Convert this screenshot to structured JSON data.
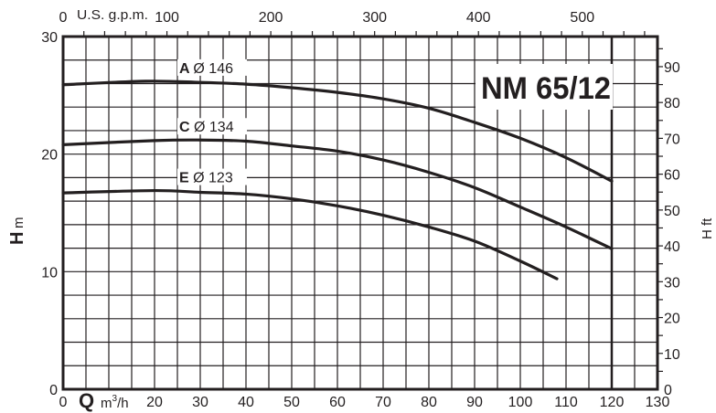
{
  "chart_data": {
    "type": "line",
    "title": "NM 65/12",
    "xlabel": "Q",
    "xunit": "m³/h",
    "ylabel": "H",
    "yunit": "m",
    "y2label": "H ft",
    "x2label": "U.S. g.p.m.",
    "xlim": [
      0,
      130
    ],
    "ylim": [
      0,
      30
    ],
    "y2lim": [
      0,
      98.4
    ],
    "x2lim": [
      0,
      572.4
    ],
    "grid": true,
    "x_ticks": [
      "0",
      "20",
      "30",
      "40",
      "50",
      "60",
      "70",
      "80",
      "90",
      "100",
      "110",
      "120",
      "130"
    ],
    "x_tick_values": [
      0,
      20,
      30,
      40,
      50,
      60,
      70,
      80,
      90,
      100,
      110,
      120,
      130
    ],
    "y_ticks": [
      "0",
      "10",
      "20",
      "30"
    ],
    "y_tick_values": [
      0,
      10,
      20,
      30
    ],
    "y2_ticks": [
      "0",
      "10",
      "20",
      "30",
      "40",
      "50",
      "60",
      "70",
      "80",
      "90"
    ],
    "y2_tick_values": [
      0,
      10,
      20,
      30,
      40,
      50,
      60,
      70,
      80,
      90
    ],
    "x2_ticks": [
      "0",
      "100",
      "200",
      "300",
      "400",
      "500"
    ],
    "x2_tick_values": [
      0,
      100,
      200,
      300,
      400,
      500
    ],
    "max_flow_marker": 120,
    "series": [
      {
        "name": "A Ø 146",
        "letter": "A",
        "diameter": "Ø 146",
        "x": [
          0,
          18,
          30,
          40,
          50,
          60,
          70,
          80,
          90,
          100,
          110,
          120
        ],
        "y": [
          25.9,
          26.2,
          26.1,
          25.95,
          25.65,
          25.25,
          24.7,
          23.9,
          22.7,
          21.35,
          19.7,
          17.7
        ]
      },
      {
        "name": "C Ø 134",
        "letter": "C",
        "diameter": "Ø 134",
        "x": [
          0,
          20,
          30,
          40,
          50,
          60,
          70,
          80,
          90,
          100,
          110,
          120
        ],
        "y": [
          20.8,
          21.15,
          21.2,
          21.1,
          20.7,
          20.25,
          19.5,
          18.45,
          17.15,
          15.5,
          13.8,
          11.95
        ]
      },
      {
        "name": "E Ø 123",
        "letter": "E",
        "diameter": "Ø 123",
        "x": [
          0,
          20,
          30,
          40,
          50,
          60,
          70,
          80,
          90,
          100,
          108
        ],
        "y": [
          16.7,
          16.9,
          16.75,
          16.6,
          16.2,
          15.6,
          14.8,
          13.8,
          12.6,
          10.9,
          9.4
        ]
      }
    ]
  }
}
